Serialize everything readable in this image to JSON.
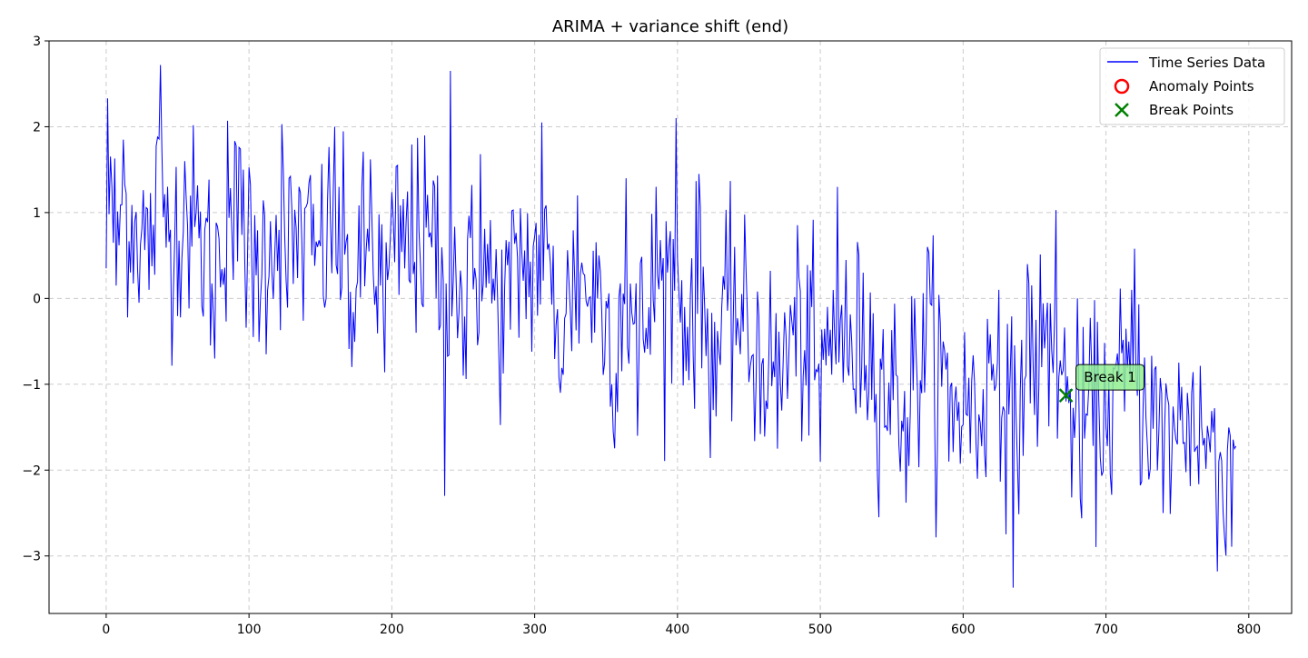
{
  "chart_data": {
    "type": "line",
    "title": "ARIMA + variance shift (end)",
    "xlabel": "",
    "ylabel": "",
    "xlim": [
      -40,
      830
    ],
    "ylim": [
      -3.67,
      3.0
    ],
    "x_ticks": [
      0,
      100,
      200,
      300,
      400,
      500,
      600,
      700,
      800
    ],
    "y_ticks": [
      -3,
      -2,
      -1,
      0,
      1,
      2,
      3
    ],
    "y_tick_labels": [
      "−3",
      "−2",
      "−1",
      "0",
      "1",
      "2",
      "3"
    ],
    "grid": true,
    "legend_position": "top-right",
    "legend": [
      {
        "label": "Time Series Data",
        "marker": "line",
        "color": "#0000ff"
      },
      {
        "label": "Anomaly Points",
        "marker": "open-circle",
        "color": "#ff0000"
      },
      {
        "label": "Break Points",
        "marker": "x",
        "color": "#008000"
      }
    ],
    "series": [
      {
        "name": "Time Series Data",
        "color": "#0000ff",
        "x_start": 0,
        "x_step": 1,
        "n_points": 792,
        "anchor_x": [
          0,
          1,
          4,
          7,
          12,
          20,
          30,
          38,
          45,
          55,
          65,
          76,
          85,
          96,
          103,
          115,
          123,
          126,
          135,
          148,
          160,
          172,
          185,
          195,
          204,
          218,
          232,
          237,
          241,
          250,
          262,
          275,
          290,
          305,
          318,
          330,
          345,
          355,
          364,
          372,
          385,
          399,
          405,
          415,
          425,
          440,
          455,
          470,
          485,
          500,
          512,
          520,
          530,
          545,
          560,
          575,
          590,
          610,
          625,
          635,
          645,
          665,
          672,
          682,
          700,
          720,
          740,
          760,
          778,
          783,
          790,
          791
        ],
        "anchor_y": [
          0.35,
          2.33,
          1.3,
          0.15,
          1.85,
          0.9,
          0.1,
          2.72,
          0.8,
          1.6,
          0.7,
          -0.7,
          2.07,
          1.5,
          -0.45,
          0.9,
          2.03,
          0.2,
          1.3,
          0.6,
          2.0,
          -0.8,
          1.62,
          -0.86,
          1.55,
          1.87,
          1.43,
          -2.3,
          2.65,
          -0.9,
          1.68,
          -0.7,
          1.05,
          2.05,
          -1.1,
          1.2,
          0.5,
          -1.55,
          1.4,
          -1.6,
          1.3,
          2.1,
          -0.1,
          1.45,
          -1.3,
          0.6,
          -1.0,
          -1.75,
          0.25,
          -1.9,
          1.3,
          -0.9,
          0.3,
          -1.5,
          -2.38,
          0.6,
          -1.9,
          -2.1,
          0.1,
          -3.37,
          0.4,
          1.03,
          -1.2,
          -2.33,
          -1.5,
          0.58,
          -2.5,
          -1.1,
          -3.18,
          -2.78,
          -1.75,
          -1.72
        ],
        "noise_std_start": 0.6,
        "noise_std_end": 0.6
      }
    ],
    "anomaly_points": [],
    "break_points": [
      {
        "x": 672,
        "y": -1.13,
        "label": "Break 1"
      }
    ],
    "colors": {
      "series": "#0000ff",
      "anomaly": "#ff0000",
      "break": "#008000",
      "annotation_fill": "#90ee90",
      "grid": "#cccccc"
    }
  }
}
